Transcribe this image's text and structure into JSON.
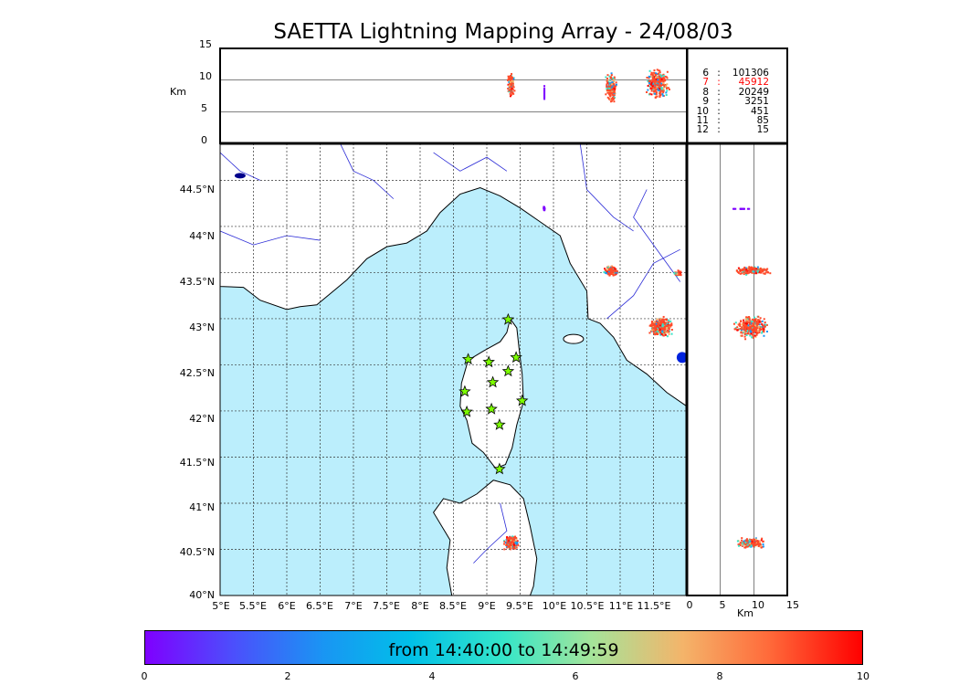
{
  "title": "SAETTA Lightning Mapping Array - 24/08/03",
  "altitude_axis": {
    "label": "Km",
    "ticks": [
      "15",
      "10",
      "5",
      "0"
    ]
  },
  "side_axis": {
    "label": "Km",
    "ticks": [
      "0",
      "5",
      "10",
      "15"
    ]
  },
  "map": {
    "lon_ticks": [
      "5°E",
      "5.5°E",
      "6°E",
      "6.5°E",
      "7°E",
      "7.5°E",
      "8°E",
      "8.5°E",
      "9°E",
      "9.5°E",
      "10°E",
      "10.5°E",
      "11°E",
      "11.5°E"
    ],
    "lat_ticks": [
      "44.5°N",
      "44°N",
      "43.5°N",
      "43°N",
      "42.5°N",
      "42°N",
      "41.5°N",
      "41°N",
      "40.5°N",
      "40°N"
    ],
    "sea_color": "#bbeefc",
    "coast_color": "#000000",
    "river_color": "#2b2bd6",
    "station_color": "#7cfc00",
    "stations": [
      {
        "lon": 9.32,
        "lat": 42.99
      },
      {
        "lon": 8.72,
        "lat": 42.56
      },
      {
        "lon": 9.03,
        "lat": 42.53
      },
      {
        "lon": 9.44,
        "lat": 42.58
      },
      {
        "lon": 9.32,
        "lat": 42.43
      },
      {
        "lon": 9.09,
        "lat": 42.31
      },
      {
        "lon": 8.67,
        "lat": 42.21
      },
      {
        "lon": 9.53,
        "lat": 42.11
      },
      {
        "lon": 8.7,
        "lat": 41.99
      },
      {
        "lon": 9.07,
        "lat": 42.02
      },
      {
        "lon": 9.19,
        "lat": 41.85
      },
      {
        "lon": 9.19,
        "lat": 41.37
      }
    ]
  },
  "altitude_counts": [
    {
      "level": "6",
      "value": "101306",
      "color": "#000000"
    },
    {
      "level": "7",
      "value": "45912",
      "color": "#ff0000"
    },
    {
      "level": "8",
      "value": "20249",
      "color": "#000000"
    },
    {
      "level": "9",
      "value": "3251",
      "color": "#000000"
    },
    {
      "level": "10",
      "value": "451",
      "color": "#000000"
    },
    {
      "level": "11",
      "value": "85",
      "color": "#000000"
    },
    {
      "level": "12",
      "value": "15",
      "color": "#000000"
    }
  ],
  "colorbar": {
    "label": "from 14:40:00 to 14:49:59",
    "ticks": [
      "0",
      "2",
      "4",
      "6",
      "8",
      "10"
    ],
    "colors": [
      "#7f00ff",
      "#1996f3",
      "#35e6c9",
      "#f4b46a",
      "#ff4a2a",
      "#ff0000"
    ]
  }
}
